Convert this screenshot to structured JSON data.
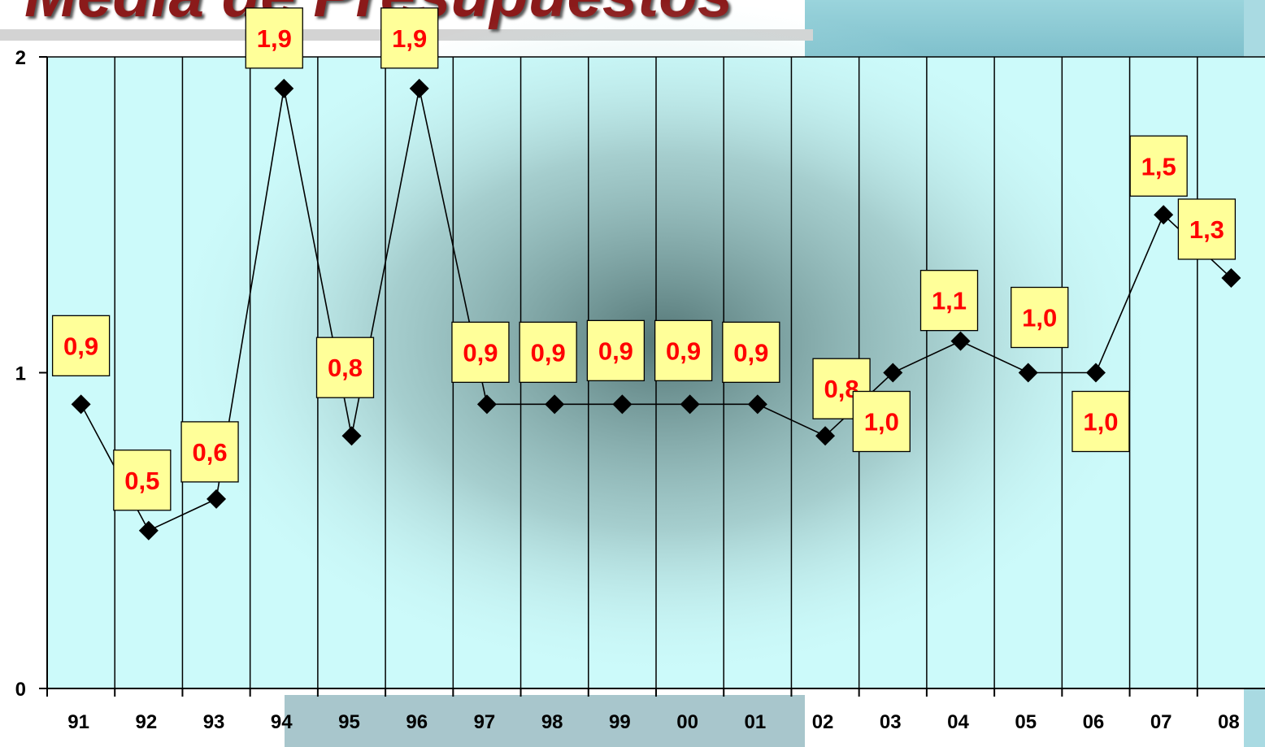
{
  "title": "Media de Presupuestos",
  "chart_data": {
    "type": "line",
    "categories": [
      "91",
      "92",
      "93",
      "94",
      "95",
      "96",
      "97",
      "98",
      "99",
      "00",
      "01",
      "02",
      "03",
      "04",
      "05",
      "06",
      "07",
      "08"
    ],
    "series": [
      {
        "values": [
          0.9,
          0.5,
          0.6,
          1.9,
          0.8,
          1.9,
          0.9,
          0.9,
          0.9,
          0.9,
          0.9,
          0.8,
          1.0,
          1.1,
          1.0,
          1.0,
          1.5,
          1.3
        ]
      }
    ],
    "data_labels": [
      "0,9",
      "0,5",
      "0,6",
      "1,9",
      "0,8",
      "1,9",
      "0,9",
      "0,9",
      "0,9",
      "0,9",
      "0,9",
      "0,8",
      "1,0",
      "1,1",
      "1,0",
      "1,0",
      "1,5",
      "1,3"
    ],
    "yticks": [
      "0",
      "1",
      "2"
    ],
    "ylim": [
      0,
      2
    ],
    "grid": "vertical",
    "legend": "none",
    "marker": "diamond",
    "colors": {
      "plot_area": "#ccfafa",
      "line": "#000000",
      "label_box": "#ffff99",
      "label_text": "#ff0000",
      "title": "#8b1a1a"
    }
  }
}
